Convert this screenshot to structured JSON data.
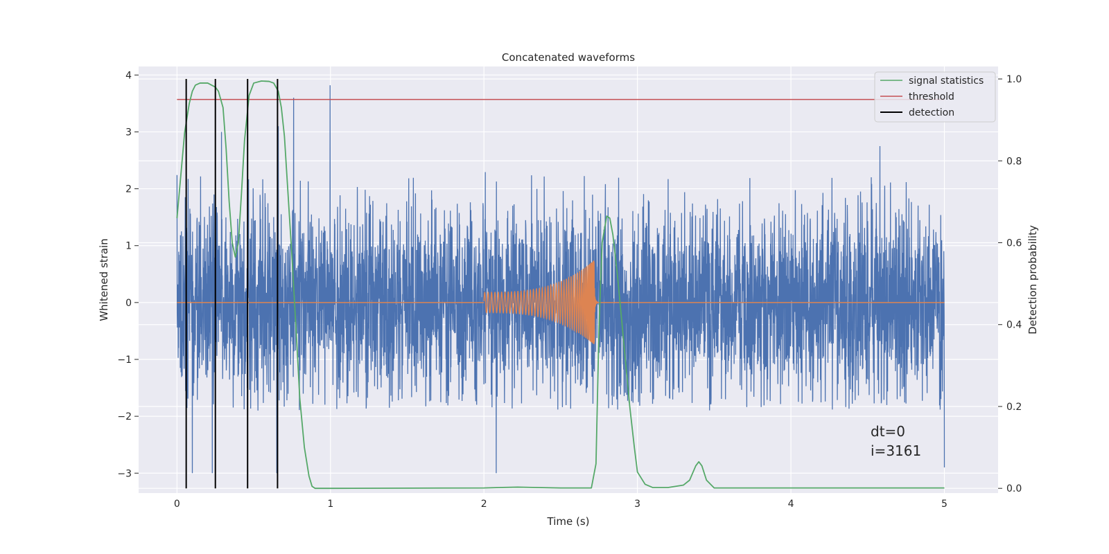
{
  "chart_data": {
    "type": "line",
    "title": "Concatenated waveforms",
    "xlabel": "Time (s)",
    "ylabel": "Whitened strain",
    "y2label": "Detection probability",
    "xlim": [
      -0.25,
      5.35
    ],
    "ylim": [
      -3.35,
      4.15
    ],
    "y2lim": [
      -0.0115,
      1.0305
    ],
    "xticks": [
      0,
      1,
      2,
      3,
      4,
      5
    ],
    "xtick_labels": [
      "0",
      "1",
      "2",
      "3",
      "4",
      "5"
    ],
    "yticks": [
      -3,
      -2,
      -1,
      0,
      1,
      2,
      3,
      4
    ],
    "ytick_labels": [
      "−3",
      "−2",
      "−1",
      "0",
      "1",
      "2",
      "3",
      "4"
    ],
    "y2ticks": [
      0,
      0.2,
      0.4,
      0.6,
      0.8,
      1.0
    ],
    "y2tick_labels": [
      "0.0",
      "0.2",
      "0.4",
      "0.6",
      "0.8",
      "1.0"
    ],
    "grid": true,
    "legend_position": "top-right",
    "legend": [
      {
        "name": "signal statistics",
        "color": "#55a868"
      },
      {
        "name": "threshold",
        "color": "#c44e52"
      },
      {
        "name": "detection",
        "color": "#000000"
      }
    ],
    "annotation_lines": [
      "dt=0",
      "i=3161"
    ],
    "annotation_position": {
      "x": 4.5,
      "y": -2.3
    },
    "colors": {
      "background": "#eaeaf2",
      "grid": "#ffffff",
      "noise": "#4c72b0",
      "chirp": "#dd8452",
      "statistic": "#55a868",
      "threshold": "#c44e52",
      "detection": "#000000"
    },
    "noise": {
      "axis": "left",
      "t_start": 0,
      "t_end": 5,
      "typical_range": [
        -1.9,
        2.3
      ],
      "max": 3.8,
      "min": -3.05,
      "spikes": [
        {
          "t": 0.76,
          "y": 3.6
        },
        {
          "t": 0.998,
          "y": 3.82
        },
        {
          "t": 0.66,
          "y": 3.1
        },
        {
          "t": 0.29,
          "y": 3.0
        },
        {
          "t": 0.1,
          "y": -3.0
        },
        {
          "t": 0.23,
          "y": -3.0
        },
        {
          "t": 0.65,
          "y": -3.0
        },
        {
          "t": 2.08,
          "y": -3.0
        },
        {
          "t": 4.58,
          "y": 2.75
        },
        {
          "t": 5.0,
          "y": -2.9
        }
      ]
    },
    "chirp": {
      "axis": "left",
      "t_start": 2.0,
      "t_merger": 2.72,
      "amplitude_start": 0.18,
      "amplitude_peak": 0.75,
      "amplitude_min": -0.85
    },
    "signal_statistics": {
      "axis": "right",
      "t": [
        0.0,
        0.05,
        0.08,
        0.1,
        0.12,
        0.15,
        0.2,
        0.25,
        0.27,
        0.3,
        0.32,
        0.34,
        0.36,
        0.38,
        0.4,
        0.42,
        0.44,
        0.47,
        0.5,
        0.55,
        0.6,
        0.63,
        0.66,
        0.68,
        0.7,
        0.72,
        0.75,
        0.78,
        0.8,
        0.83,
        0.86,
        0.88,
        0.9,
        1.0,
        2.0,
        2.1,
        2.22,
        2.35,
        2.5,
        2.7,
        2.73,
        2.75,
        2.77,
        2.8,
        2.82,
        2.84,
        2.87,
        2.9,
        2.95,
        2.98,
        3.0,
        3.05,
        3.1,
        3.2,
        3.3,
        3.34,
        3.38,
        3.4,
        3.42,
        3.45,
        3.5,
        3.7,
        4.0,
        5.0
      ],
      "values": [
        0.66,
        0.87,
        0.94,
        0.97,
        0.985,
        0.99,
        0.99,
        0.98,
        0.97,
        0.93,
        0.83,
        0.7,
        0.6,
        0.565,
        0.6,
        0.72,
        0.85,
        0.96,
        0.99,
        0.995,
        0.994,
        0.99,
        0.97,
        0.93,
        0.86,
        0.74,
        0.56,
        0.36,
        0.22,
        0.1,
        0.03,
        0.005,
        0.0,
        0.0,
        0.001,
        0.002,
        0.003,
        0.002,
        0.001,
        0.001,
        0.06,
        0.4,
        0.6,
        0.665,
        0.66,
        0.62,
        0.52,
        0.4,
        0.2,
        0.1,
        0.04,
        0.01,
        0.002,
        0.002,
        0.008,
        0.02,
        0.055,
        0.065,
        0.055,
        0.02,
        0.001,
        0.001,
        0.001,
        0.001
      ]
    },
    "threshold": {
      "axis": "right",
      "value": 0.95,
      "t_range": [
        0,
        5
      ]
    },
    "detections": {
      "axis": "right",
      "t": [
        0.06,
        0.25,
        0.46,
        0.655
      ],
      "range": [
        0,
        1
      ]
    }
  }
}
